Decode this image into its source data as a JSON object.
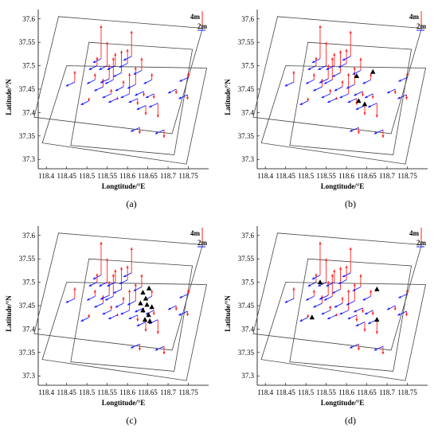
{
  "chart_data": [
    {
      "type": "scatter",
      "panel_label": "(a)",
      "xlabel": "Longtitude/°E",
      "ylabel": "Latitude/°N",
      "xlim": [
        118.38,
        118.8
      ],
      "ylim": [
        37.28,
        37.62
      ],
      "xticks": [
        "118.4",
        "118.45",
        "118.5",
        "118.55",
        "118.6",
        "118.65",
        "118.7",
        "118.75"
      ],
      "yticks": [
        "37.3",
        "37.35",
        "37.4",
        "37.45",
        "37.5",
        "37.55",
        "37.6"
      ],
      "scale_labels": [
        "4m",
        "2m"
      ],
      "vertical_color": "#ff2020",
      "horizontal_color": "#1a1aff",
      "triangles": []
    },
    {
      "type": "scatter",
      "panel_label": "(b)",
      "xlabel": "Longtitude/°E",
      "ylabel": "Latitude/°N",
      "xlim": [
        118.38,
        118.8
      ],
      "ylim": [
        37.28,
        37.62
      ],
      "xticks": [
        "118.4",
        "118.45",
        "118.5",
        "118.55",
        "118.6",
        "118.65",
        "118.7",
        "118.75"
      ],
      "yticks": [
        "37.3",
        "37.35",
        "37.4",
        "37.45",
        "37.5",
        "37.55",
        "37.6"
      ],
      "scale_labels": [
        "4m",
        "2m"
      ],
      "vertical_color": "#ff2020",
      "horizontal_color": "#1a1aff",
      "triangles": [
        [
          118.625,
          37.478
        ],
        [
          118.665,
          37.487
        ],
        [
          118.63,
          37.425
        ],
        [
          118.645,
          37.418
        ]
      ]
    },
    {
      "type": "scatter",
      "panel_label": "(c)",
      "xlabel": "Longtitude/°E",
      "ylabel": "Latitude/°N",
      "xlim": [
        118.38,
        118.8
      ],
      "ylim": [
        37.28,
        37.62
      ],
      "xticks": [
        "118.4",
        "118.45",
        "118.5",
        "118.55",
        "118.6",
        "118.65",
        "118.7",
        "118.75"
      ],
      "yticks": [
        "37.3",
        "37.35",
        "37.4",
        "37.45",
        "37.5",
        "37.55",
        "37.6"
      ],
      "scale_labels": [
        "4m",
        "2m"
      ],
      "vertical_color": "#ff2020",
      "horizontal_color": "#1a1aff",
      "triangles": [
        [
          118.653,
          37.487
        ],
        [
          118.638,
          37.478
        ],
        [
          118.645,
          37.465
        ],
        [
          118.632,
          37.455
        ],
        [
          118.648,
          37.452
        ],
        [
          118.66,
          37.447
        ],
        [
          118.638,
          37.44
        ],
        [
          118.652,
          37.43
        ],
        [
          118.643,
          37.42
        ],
        [
          118.655,
          37.417
        ]
      ]
    },
    {
      "type": "scatter",
      "panel_label": "(d)",
      "xlabel": "Longtitude/°E",
      "ylabel": "Latitude/°N",
      "xlim": [
        118.38,
        118.8
      ],
      "ylim": [
        37.28,
        37.62
      ],
      "xticks": [
        "118.4",
        "118.45",
        "118.5",
        "118.55",
        "118.6",
        "118.65",
        "118.7",
        "118.75"
      ],
      "yticks": [
        "37.3",
        "37.35",
        "37.4",
        "37.45",
        "37.5",
        "37.55",
        "37.6"
      ],
      "scale_labels": [
        "4m",
        "2m"
      ],
      "vertical_color": "#ff2020",
      "horizontal_color": "#1a1aff",
      "triangles": [
        [
          118.535,
          37.5
        ],
        [
          118.675,
          37.485
        ],
        [
          118.515,
          37.425
        ],
        [
          118.675,
          37.42
        ]
      ]
    }
  ],
  "stations": [
    {
      "lon": 118.47,
      "lat": 37.465,
      "up": 0.7,
      "dx": -0.022,
      "dy": -0.01
    },
    {
      "lon": 118.505,
      "lat": 37.425,
      "up": 0.2,
      "dx": -0.02,
      "dy": -0.01
    },
    {
      "lon": 118.52,
      "lat": 37.47,
      "up": 0.4,
      "dx": -0.02,
      "dy": -0.01
    },
    {
      "lon": 118.525,
      "lat": 37.5,
      "up": 0.55,
      "dx": -0.02,
      "dy": -0.01
    },
    {
      "lon": 118.535,
      "lat": 37.515,
      "up": 2.1,
      "dx": -0.02,
      "dy": -0.01
    },
    {
      "lon": 118.54,
      "lat": 37.455,
      "up": 0.5,
      "dx": -0.022,
      "dy": -0.01
    },
    {
      "lon": 118.55,
      "lat": 37.5,
      "up": 1.5,
      "dx": -0.02,
      "dy": -0.01
    },
    {
      "lon": 118.555,
      "lat": 37.472,
      "up": 0.9,
      "dx": -0.022,
      "dy": -0.01
    },
    {
      "lon": 118.56,
      "lat": 37.44,
      "up": 0.3,
      "dx": -0.022,
      "dy": -0.01
    },
    {
      "lon": 118.565,
      "lat": 37.47,
      "up": 1.4,
      "dx": -0.02,
      "dy": -0.01
    },
    {
      "lon": 118.57,
      "lat": 37.5,
      "up": 0.8,
      "dx": -0.02,
      "dy": -0.01
    },
    {
      "lon": 118.575,
      "lat": 37.43,
      "up": 0.1,
      "dx": -0.022,
      "dy": -0.01
    },
    {
      "lon": 118.585,
      "lat": 37.485,
      "up": 1.4,
      "dx": -0.02,
      "dy": -0.01
    },
    {
      "lon": 118.59,
      "lat": 37.455,
      "up": 0.4,
      "dx": -0.02,
      "dy": -0.01
    },
    {
      "lon": 118.6,
      "lat": 37.505,
      "up": 0.9,
      "dx": -0.02,
      "dy": -0.01
    },
    {
      "lon": 118.605,
      "lat": 37.44,
      "up": 1.3,
      "dx": -0.022,
      "dy": -0.01
    },
    {
      "lon": 118.61,
      "lat": 37.52,
      "up": 1.6,
      "dx": -0.02,
      "dy": -0.01
    },
    {
      "lon": 118.62,
      "lat": 37.46,
      "up": 1.1,
      "dx": -0.02,
      "dy": -0.01
    },
    {
      "lon": 118.625,
      "lat": 37.43,
      "up": -0.4,
      "dx": -0.022,
      "dy": -0.01
    },
    {
      "lon": 118.635,
      "lat": 37.49,
      "up": 0.8,
      "dx": -0.02,
      "dy": -0.01
    },
    {
      "lon": 118.64,
      "lat": 37.445,
      "up": -0.3,
      "dx": -0.022,
      "dy": -0.01
    },
    {
      "lon": 118.645,
      "lat": 37.415,
      "up": -0.6,
      "dx": -0.022,
      "dy": -0.01
    },
    {
      "lon": 118.66,
      "lat": 37.47,
      "up": 0.4,
      "dx": -0.02,
      "dy": -0.01
    },
    {
      "lon": 118.665,
      "lat": 37.44,
      "up": -0.3,
      "dx": -0.02,
      "dy": -0.01
    },
    {
      "lon": 118.675,
      "lat": 37.42,
      "up": -0.9,
      "dx": -0.022,
      "dy": -0.01
    },
    {
      "lon": 118.63,
      "lat": 37.368,
      "up": -0.4,
      "dx": -0.022,
      "dy": -0.01
    },
    {
      "lon": 118.69,
      "lat": 37.363,
      "up": -0.5,
      "dx": -0.022,
      "dy": -0.01
    },
    {
      "lon": 118.72,
      "lat": 37.45,
      "up": -0.3,
      "dx": -0.02,
      "dy": -0.01
    },
    {
      "lon": 118.75,
      "lat": 37.475,
      "up": 0.3,
      "dx": -0.022,
      "dy": -0.01
    },
    {
      "lon": 118.748,
      "lat": 37.438,
      "up": -0.3,
      "dx": -0.022,
      "dy": -0.01
    }
  ]
}
